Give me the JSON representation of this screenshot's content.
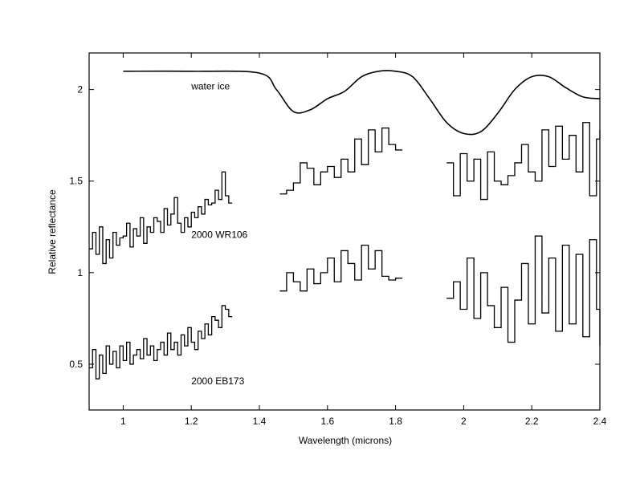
{
  "chart_data": {
    "type": "line",
    "title": "",
    "xlabel": "Wavelength (microns)",
    "ylabel": "Relative reflectance",
    "xlim": [
      0.9,
      2.4
    ],
    "ylim": [
      0.25,
      2.2
    ],
    "xticks": [
      1,
      1.2,
      1.4,
      1.6,
      1.8,
      2,
      2.2,
      2.4
    ],
    "xtick_labels": [
      "1",
      "1.2",
      "1.4",
      "1.6",
      "1.8",
      "2",
      "2.2",
      "2.4"
    ],
    "yticks": [
      0.5,
      1,
      1.5,
      2
    ],
    "ytick_labels": [
      "0.5",
      "1",
      "1.5",
      "2"
    ],
    "grid": false,
    "legend": "none",
    "annotations": [
      {
        "text": "water ice",
        "x": 1.2,
        "y": 2.0
      },
      {
        "text": "2000 WR106",
        "x": 1.2,
        "y": 1.19
      },
      {
        "text": "2000 EB173",
        "x": 1.2,
        "y": 0.39
      }
    ],
    "series": [
      {
        "name": "water ice",
        "style": "smooth",
        "x": [
          1.0,
          1.2,
          1.4,
          1.45,
          1.5,
          1.55,
          1.6,
          1.65,
          1.7,
          1.75,
          1.8,
          1.85,
          1.9,
          1.95,
          2.0,
          2.05,
          2.1,
          2.15,
          2.2,
          2.25,
          2.3,
          2.35,
          2.4
        ],
        "y": [
          2.1,
          2.1,
          2.09,
          2.0,
          1.88,
          1.89,
          1.95,
          1.99,
          2.07,
          2.1,
          2.1,
          2.07,
          1.95,
          1.82,
          1.76,
          1.77,
          1.87,
          2.0,
          2.07,
          2.07,
          2.01,
          1.96,
          1.95
        ]
      },
      {
        "name": "2000 WR106",
        "style": "step",
        "segments": [
          {
            "x": [
              0.9,
              0.91,
              0.92,
              0.93,
              0.94,
              0.95,
              0.96,
              0.97,
              0.98,
              0.99,
              1.0,
              1.01,
              1.02,
              1.03,
              1.04,
              1.05,
              1.06,
              1.07,
              1.08,
              1.09,
              1.1,
              1.11,
              1.12,
              1.13,
              1.14,
              1.15,
              1.16,
              1.17,
              1.18,
              1.19,
              1.2,
              1.21,
              1.22,
              1.23,
              1.24,
              1.25,
              1.26,
              1.27,
              1.28,
              1.29,
              1.3,
              1.31
            ],
            "y": [
              1.13,
              1.22,
              1.1,
              1.25,
              1.05,
              1.18,
              1.08,
              1.22,
              1.15,
              1.19,
              1.2,
              1.27,
              1.14,
              1.24,
              1.2,
              1.3,
              1.16,
              1.25,
              1.22,
              1.3,
              1.28,
              1.22,
              1.35,
              1.26,
              1.32,
              1.41,
              1.27,
              1.22,
              1.3,
              1.25,
              1.33,
              1.3,
              1.36,
              1.32,
              1.4,
              1.37,
              1.38,
              1.45,
              1.4,
              1.55,
              1.42,
              1.38
            ]
          },
          {
            "x": [
              1.46,
              1.48,
              1.5,
              1.52,
              1.54,
              1.56,
              1.58,
              1.6,
              1.62,
              1.64,
              1.66,
              1.68,
              1.7,
              1.72,
              1.74,
              1.76,
              1.78,
              1.8
            ],
            "y": [
              1.43,
              1.45,
              1.49,
              1.6,
              1.57,
              1.48,
              1.55,
              1.58,
              1.52,
              1.62,
              1.55,
              1.73,
              1.59,
              1.78,
              1.66,
              1.79,
              1.7,
              1.67
            ]
          },
          {
            "x": [
              1.95,
              1.97,
              1.99,
              2.01,
              2.03,
              2.05,
              2.07,
              2.09,
              2.11,
              2.13,
              2.15,
              2.17,
              2.19,
              2.21,
              2.23,
              2.25,
              2.27,
              2.29,
              2.31,
              2.33,
              2.35,
              2.37,
              2.39,
              2.4
            ],
            "y": [
              1.6,
              1.42,
              1.65,
              1.5,
              1.62,
              1.4,
              1.66,
              1.5,
              1.48,
              1.53,
              1.6,
              1.7,
              1.55,
              1.5,
              1.78,
              1.58,
              1.8,
              1.62,
              1.75,
              1.55,
              1.82,
              1.42,
              1.73,
              1.78
            ]
          }
        ]
      },
      {
        "name": "2000 EB173",
        "style": "step",
        "segments": [
          {
            "x": [
              0.9,
              0.91,
              0.92,
              0.93,
              0.94,
              0.95,
              0.96,
              0.97,
              0.98,
              0.99,
              1.0,
              1.01,
              1.02,
              1.03,
              1.04,
              1.05,
              1.06,
              1.07,
              1.08,
              1.09,
              1.1,
              1.11,
              1.12,
              1.13,
              1.14,
              1.15,
              1.16,
              1.17,
              1.18,
              1.19,
              1.2,
              1.21,
              1.22,
              1.23,
              1.24,
              1.25,
              1.26,
              1.27,
              1.28,
              1.29,
              1.3,
              1.31
            ],
            "y": [
              0.48,
              0.58,
              0.42,
              0.55,
              0.45,
              0.6,
              0.5,
              0.57,
              0.48,
              0.6,
              0.52,
              0.62,
              0.5,
              0.55,
              0.58,
              0.53,
              0.64,
              0.55,
              0.6,
              0.52,
              0.58,
              0.62,
              0.55,
              0.67,
              0.58,
              0.62,
              0.55,
              0.66,
              0.6,
              0.7,
              0.62,
              0.58,
              0.68,
              0.64,
              0.72,
              0.66,
              0.76,
              0.74,
              0.7,
              0.82,
              0.8,
              0.76
            ]
          },
          {
            "x": [
              1.46,
              1.48,
              1.5,
              1.52,
              1.54,
              1.56,
              1.58,
              1.6,
              1.62,
              1.64,
              1.66,
              1.68,
              1.7,
              1.72,
              1.74,
              1.76,
              1.78,
              1.8
            ],
            "y": [
              0.9,
              1.0,
              0.95,
              0.9,
              1.02,
              0.94,
              1.0,
              1.08,
              0.95,
              1.12,
              1.05,
              0.96,
              1.15,
              1.02,
              1.12,
              0.98,
              0.96,
              0.97
            ]
          },
          {
            "x": [
              1.95,
              1.97,
              1.99,
              2.01,
              2.03,
              2.05,
              2.07,
              2.09,
              2.11,
              2.13,
              2.15,
              2.17,
              2.19,
              2.21,
              2.23,
              2.25,
              2.27,
              2.29,
              2.31,
              2.33,
              2.35,
              2.37,
              2.39,
              2.4
            ],
            "y": [
              0.86,
              0.95,
              0.8,
              1.08,
              0.75,
              1.0,
              0.82,
              0.7,
              0.92,
              0.62,
              0.85,
              1.05,
              0.72,
              1.2,
              0.78,
              1.08,
              0.68,
              1.15,
              0.72,
              1.1,
              0.65,
              1.18,
              0.8,
              0.6
            ]
          }
        ]
      }
    ]
  }
}
